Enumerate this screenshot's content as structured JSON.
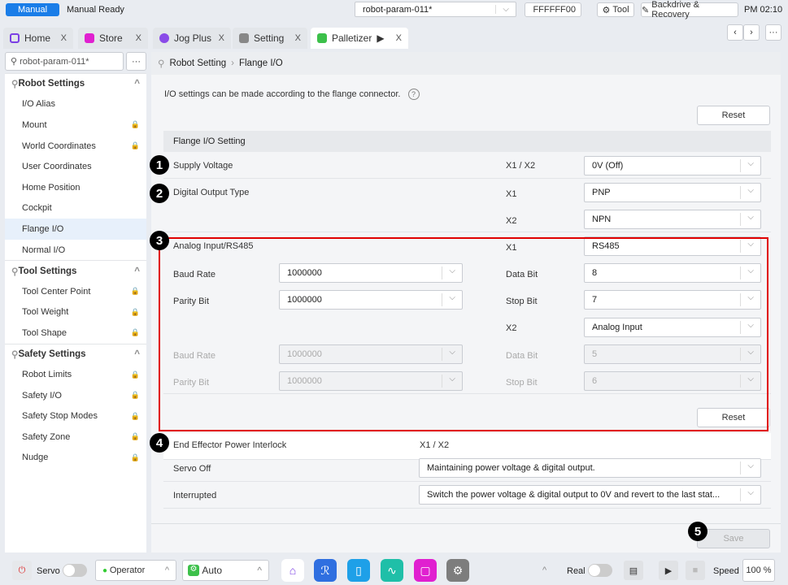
{
  "topbar": {
    "mode": "Manual",
    "status": "Manual Ready",
    "project": "robot-param-011*",
    "color_code": "FFFFFF00",
    "tool": "Tool",
    "backdrive": "Backdrive & Recovery",
    "time": "PM 02:10"
  },
  "tabs": [
    {
      "label": "Home",
      "color": "#7b3fe4"
    },
    {
      "label": "Store",
      "color": "#e020d0"
    },
    {
      "label": "Jog Plus",
      "color": "#8a4be8"
    },
    {
      "label": "Setting",
      "color": "#888888"
    },
    {
      "label": "Palletizer",
      "color": "#3cc04a"
    }
  ],
  "sidebar": {
    "project": "robot-param-011*",
    "more": "···",
    "items": [
      {
        "label": "Robot Settings",
        "group": true
      },
      {
        "label": "I/O Alias"
      },
      {
        "label": "Mount",
        "lock": true
      },
      {
        "label": "World Coordinates",
        "lock": true
      },
      {
        "label": "User Coordinates"
      },
      {
        "label": "Home Position"
      },
      {
        "label": "Cockpit"
      },
      {
        "label": "Flange I/O",
        "selected": true
      },
      {
        "label": "Normal I/O"
      },
      {
        "label": "Tool Settings",
        "group": true
      },
      {
        "label": "Tool Center Point",
        "lock": true
      },
      {
        "label": "Tool Weight",
        "lock": true
      },
      {
        "label": "Tool Shape",
        "lock": true
      },
      {
        "label": "Safety Settings",
        "group": true
      },
      {
        "label": "Robot Limits",
        "lock": true
      },
      {
        "label": "Safety I/O",
        "lock": true
      },
      {
        "label": "Safety Stop Modes",
        "lock": true
      },
      {
        "label": "Safety Zone",
        "lock": true
      },
      {
        "label": "Nudge",
        "lock": true
      }
    ]
  },
  "main": {
    "breadcrumb": [
      "Robot Setting",
      "Flange I/O"
    ],
    "description": "I/O settings can be made according to the flange connector.",
    "reset": "Reset",
    "section": "Flange I/O Setting",
    "supply_voltage": {
      "label": "Supply Voltage",
      "port": "X1 / X2",
      "value": "0V (Off)"
    },
    "digital_output": {
      "label": "Digital Output Type",
      "x1": "X1",
      "x1_value": "PNP",
      "x2": "X2",
      "x2_value": "NPN"
    },
    "analog": {
      "label": "Analog Input/RS485",
      "x1": "X1",
      "x1_value": "RS485",
      "baud_label": "Baud Rate",
      "baud": "1000000",
      "data_bit_label": "Data Bit",
      "data_bit": "8",
      "parity_label": "Parity Bit",
      "parity": "1000000",
      "stop_bit_label": "Stop Bit",
      "stop_bit": "7",
      "x2": "X2",
      "x2_value": "Analog Input",
      "baud2": "1000000",
      "data_bit2": "5",
      "parity2": "1000000",
      "stop_bit2": "6",
      "reset": "Reset"
    },
    "interlock": {
      "label": "End Effector Power Interlock",
      "port": "X1 / X2",
      "servo_off_label": "Servo Off",
      "servo_off": "Maintaining power voltage & digital output.",
      "interrupted_label": "Interrupted",
      "interrupted": "Switch the power voltage & digital output to 0V and revert to the last stat..."
    },
    "save": "Save",
    "markers": [
      "1",
      "2",
      "3",
      "4",
      "5"
    ]
  },
  "bottombar": {
    "servo": "Servo",
    "operator": "Operator",
    "auto": "Auto",
    "real": "Real",
    "speed_label": "Speed",
    "speed": "100 %"
  },
  "colors": {
    "accent": "#1a73e8",
    "highlight": "#e00000"
  }
}
